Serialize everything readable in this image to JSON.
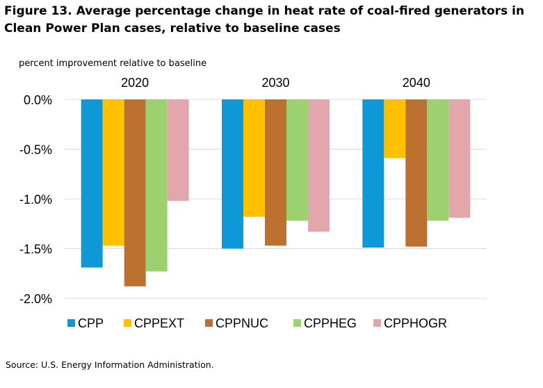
{
  "chart_data": {
    "type": "bar",
    "title": "Figure 13. Average percentage change in heat rate of coal-fired generators in Clean Power Plan cases, relative to baseline cases",
    "ylabel": "percent improvement relative to baseline",
    "xlabel": "",
    "categories": [
      "2020",
      "2030",
      "2040"
    ],
    "ylim": [
      -2.0,
      0.0
    ],
    "yticks": [
      0.0,
      -0.5,
      -1.0,
      -1.5,
      -2.0
    ],
    "ytick_labels": [
      "0.0%",
      "-0.5%",
      "-1.0%",
      "-1.5%",
      "-2.0%"
    ],
    "grid": true,
    "legend_position": "bottom",
    "series": [
      {
        "name": "CPP",
        "color": "#0f98d8",
        "values": [
          -1.69,
          -1.5,
          -1.49
        ]
      },
      {
        "name": "CPPEXT",
        "color": "#ffc000",
        "values": [
          -1.47,
          -1.18,
          -0.59
        ]
      },
      {
        "name": "CPPNUC",
        "color": "#bc7131",
        "values": [
          -1.88,
          -1.47,
          -1.48
        ]
      },
      {
        "name": "CPPHEG",
        "color": "#9dd170",
        "values": [
          -1.73,
          -1.22,
          -1.22
        ]
      },
      {
        "name": "CPPHOGR",
        "color": "#e4a6ad",
        "values": [
          -1.02,
          -1.33,
          -1.19
        ]
      }
    ]
  },
  "source": "Source: U.S. Energy Information Administration."
}
